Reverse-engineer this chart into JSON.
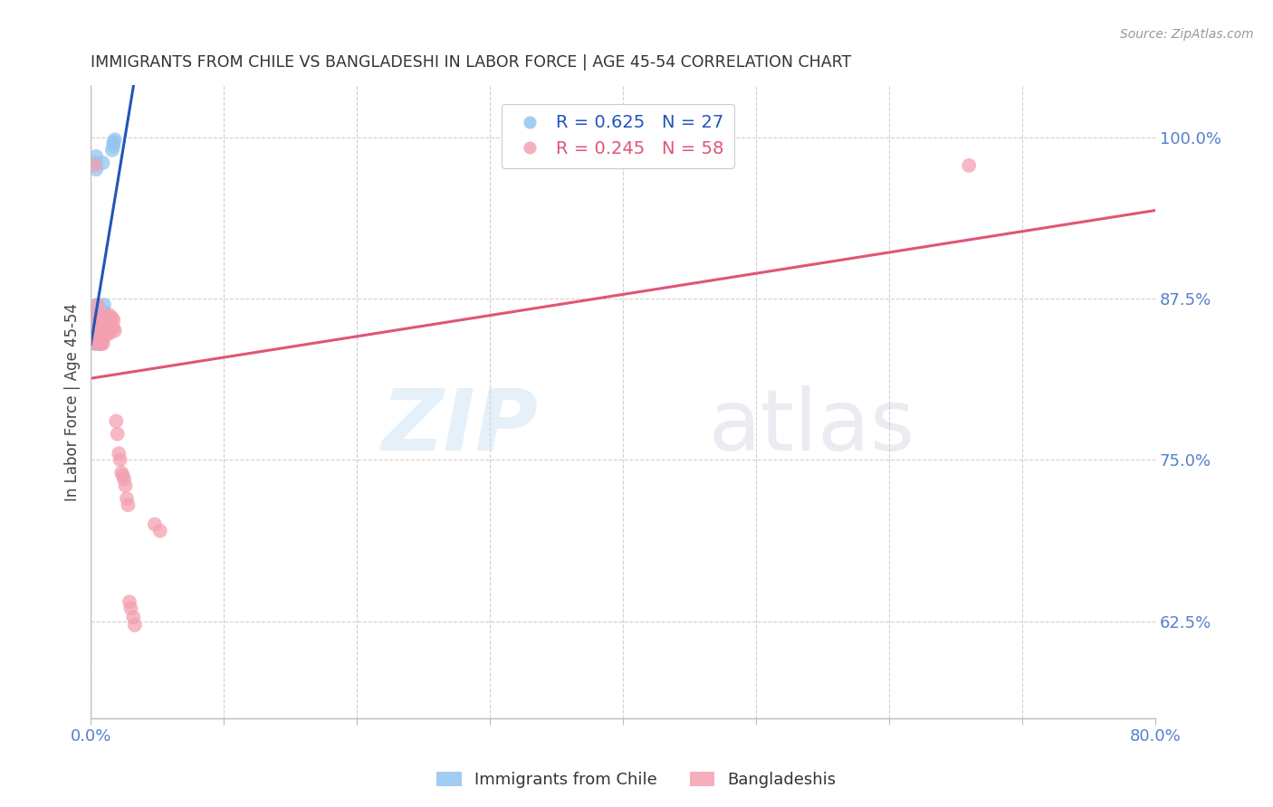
{
  "title": "IMMIGRANTS FROM CHILE VS BANGLADESHI IN LABOR FORCE | AGE 45-54 CORRELATION CHART",
  "source": "Source: ZipAtlas.com",
  "ylabel": "In Labor Force | Age 45-54",
  "xlim": [
    0.0,
    0.8
  ],
  "ylim": [
    0.55,
    1.04
  ],
  "yticks": [
    0.625,
    0.75,
    0.875,
    1.0
  ],
  "ytick_labels": [
    "62.5%",
    "75.0%",
    "87.5%",
    "100.0%"
  ],
  "xticks": [
    0.0,
    0.1,
    0.2,
    0.3,
    0.4,
    0.5,
    0.6,
    0.7,
    0.8
  ],
  "xtick_labels_show": {
    "0.0": "0.0%",
    "0.8": "80.0%"
  },
  "chile_color": "#92c5f0",
  "bangladesh_color": "#f4a0b0",
  "chile_line_color": "#2255bb",
  "bangladesh_line_color": "#e05575",
  "chile_R": 0.625,
  "chile_N": 27,
  "bangladesh_R": 0.245,
  "bangladesh_N": 58,
  "legend_label_chile": "Immigrants from Chile",
  "legend_label_bangladesh": "Bangladeshis",
  "watermark_zip": "ZIP",
  "watermark_atlas": "atlas",
  "background_color": "#ffffff",
  "grid_color": "#d0d0d0",
  "axis_color": "#bbbbbb",
  "title_color": "#333333",
  "source_color": "#999999",
  "tick_label_color": "#5580cc",
  "chile_x": [
    0.003,
    0.004,
    0.004,
    0.004,
    0.005,
    0.005,
    0.005,
    0.006,
    0.006,
    0.006,
    0.007,
    0.007,
    0.007,
    0.008,
    0.008,
    0.008,
    0.009,
    0.009,
    0.01,
    0.01,
    0.011,
    0.012,
    0.013,
    0.016,
    0.017,
    0.017,
    0.018
  ],
  "chile_y": [
    0.84,
    0.975,
    0.98,
    0.985,
    0.858,
    0.863,
    0.87,
    0.848,
    0.855,
    0.862,
    0.84,
    0.845,
    0.85,
    0.84,
    0.843,
    0.85,
    0.86,
    0.98,
    0.865,
    0.87,
    0.862,
    0.858,
    0.86,
    0.99,
    0.993,
    0.996,
    0.998
  ],
  "bangladesh_x": [
    0.003,
    0.003,
    0.004,
    0.004,
    0.005,
    0.005,
    0.005,
    0.006,
    0.006,
    0.006,
    0.006,
    0.007,
    0.007,
    0.007,
    0.007,
    0.008,
    0.008,
    0.008,
    0.008,
    0.009,
    0.009,
    0.009,
    0.01,
    0.01,
    0.01,
    0.011,
    0.011,
    0.012,
    0.012,
    0.013,
    0.013,
    0.014,
    0.014,
    0.014,
    0.015,
    0.015,
    0.016,
    0.016,
    0.017,
    0.017,
    0.018,
    0.019,
    0.02,
    0.021,
    0.022,
    0.023,
    0.024,
    0.025,
    0.026,
    0.027,
    0.028,
    0.029,
    0.03,
    0.032,
    0.033,
    0.048,
    0.052,
    0.66
  ],
  "bangladesh_y": [
    0.84,
    0.978,
    0.845,
    0.85,
    0.858,
    0.862,
    0.87,
    0.84,
    0.848,
    0.855,
    0.862,
    0.84,
    0.845,
    0.852,
    0.86,
    0.84,
    0.845,
    0.852,
    0.86,
    0.84,
    0.848,
    0.858,
    0.845,
    0.855,
    0.862,
    0.85,
    0.858,
    0.848,
    0.855,
    0.85,
    0.858,
    0.848,
    0.855,
    0.862,
    0.852,
    0.858,
    0.852,
    0.86,
    0.852,
    0.858,
    0.85,
    0.78,
    0.77,
    0.755,
    0.75,
    0.74,
    0.738,
    0.735,
    0.73,
    0.72,
    0.715,
    0.64,
    0.635,
    0.628,
    0.622,
    0.7,
    0.695,
    0.978
  ]
}
